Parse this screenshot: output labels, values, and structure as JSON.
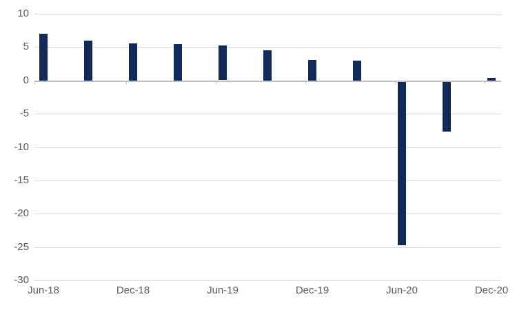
{
  "chart_data": {
    "type": "bar",
    "title": "",
    "xlabel": "",
    "ylabel": "",
    "categories": [
      "Jun-18",
      "Sep-18",
      "Dec-18",
      "Mar-19",
      "Jun-19",
      "Sep-19",
      "Dec-19",
      "Mar-20",
      "Jun-20",
      "Sep-20",
      "Dec-20"
    ],
    "values": [
      7.0,
      6.0,
      5.6,
      5.5,
      5.2,
      4.5,
      3.1,
      3.0,
      -24.5,
      -7.4,
      0.4
    ],
    "ylim": [
      -30,
      10
    ],
    "y_ticks": [
      10,
      5,
      0,
      -5,
      -10,
      -15,
      -20,
      -25,
      -30
    ],
    "x_axis_labels": [
      "Jun-18",
      "Dec-18",
      "Jun-19",
      "Dec-19",
      "Jun-20",
      "Dec-20"
    ],
    "x_label_interval": 2,
    "grid": true,
    "legend": "none",
    "colors": {
      "bar": "#112A5C",
      "gridline": "#D9D9D9",
      "axis": "#BFBFBF",
      "label": "#595959",
      "background": "#FFFFFF"
    }
  }
}
